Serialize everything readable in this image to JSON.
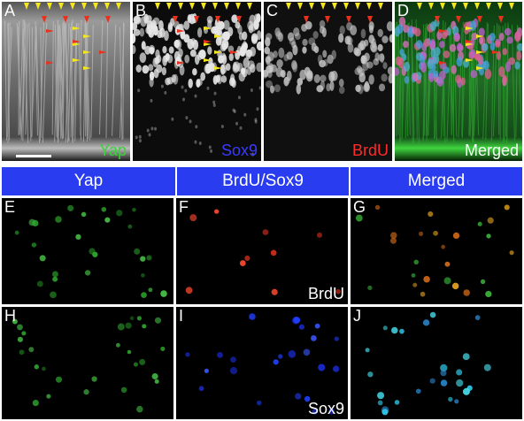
{
  "panels": {
    "A": {
      "label": "A",
      "channel": "Yap",
      "channel_color": "#3cd23c"
    },
    "B": {
      "label": "B",
      "channel": "Sox9",
      "channel_color": "#3a3aff"
    },
    "C": {
      "label": "C",
      "channel": "BrdU",
      "channel_color": "#ff2a2a"
    },
    "D": {
      "label": "D",
      "channel": "Merged",
      "channel_color": "#ffffff"
    },
    "E": {
      "label": "E"
    },
    "F": {
      "label": "F",
      "channel": "BrdU",
      "channel_color": "#ffffff"
    },
    "G": {
      "label": "G"
    },
    "H": {
      "label": "H"
    },
    "I": {
      "label": "I",
      "channel": "Sox9",
      "channel_color": "#ffffff"
    },
    "J": {
      "label": "J"
    }
  },
  "header_band": {
    "color": "#2a3cf0",
    "columns": [
      "Yap",
      "BrdU/Sox9",
      "Merged"
    ]
  },
  "arrow_colors": {
    "yellow": "#f5e61e",
    "red": "#e8321e"
  }
}
